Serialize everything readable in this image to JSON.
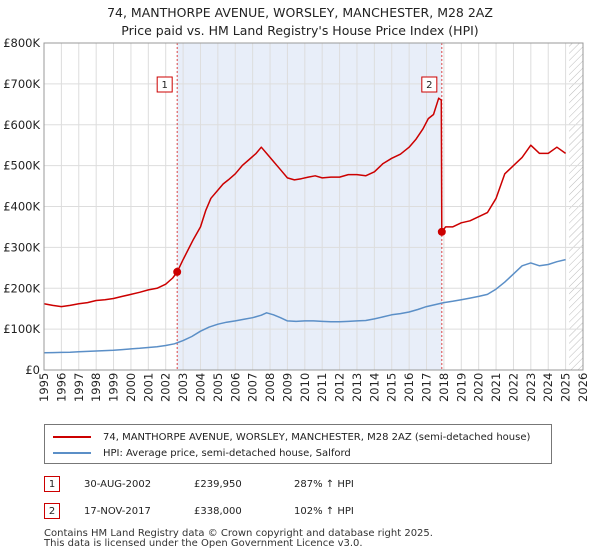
{
  "title": {
    "line1": "74, MANTHORPE AVENUE, WORSLEY, MANCHESTER, M28 2AZ",
    "line2": "Price paid vs. HM Land Registry's House Price Index (HPI)"
  },
  "chart_data": {
    "type": "line",
    "xlim": [
      1995,
      2026
    ],
    "ylim": [
      0,
      800000
    ],
    "yticks": [
      {
        "value": 0,
        "label": "£0"
      },
      {
        "value": 100000,
        "label": "£100K"
      },
      {
        "value": 200000,
        "label": "£200K"
      },
      {
        "value": 300000,
        "label": "£300K"
      },
      {
        "value": 400000,
        "label": "£400K"
      },
      {
        "value": 500000,
        "label": "£500K"
      },
      {
        "value": 600000,
        "label": "£600K"
      },
      {
        "value": 700000,
        "label": "£700K"
      },
      {
        "value": 800000,
        "label": "£800K"
      }
    ],
    "xticks": [
      "1995",
      "1996",
      "1997",
      "1998",
      "1999",
      "2000",
      "2001",
      "2002",
      "2003",
      "2004",
      "2005",
      "2006",
      "2007",
      "2008",
      "2009",
      "2010",
      "2011",
      "2012",
      "2013",
      "2014",
      "2015",
      "2016",
      "2017",
      "2018",
      "2019",
      "2020",
      "2021",
      "2022",
      "2023",
      "2024",
      "2025",
      "2026"
    ],
    "grid": true,
    "shaded_range": [
      2002.66,
      2017.88
    ],
    "forecast_from": 2025.2,
    "series": [
      {
        "name": "74, MANTHORPE AVENUE, WORSLEY, MANCHESTER, M28 2AZ (semi-detached house)",
        "color": "#cc0000",
        "x": [
          1995.0,
          1995.5,
          1996.0,
          1996.5,
          1997.0,
          1997.5,
          1998.0,
          1998.5,
          1999.0,
          1999.5,
          2000.0,
          2000.5,
          2001.0,
          2001.5,
          2002.0,
          2002.4,
          2002.66,
          2003.0,
          2003.3,
          2003.6,
          2004.0,
          2004.3,
          2004.6,
          2005.0,
          2005.3,
          2005.6,
          2006.0,
          2006.4,
          2006.8,
          2007.2,
          2007.5,
          2007.8,
          2008.2,
          2008.6,
          2009.0,
          2009.4,
          2009.8,
          2010.2,
          2010.6,
          2011.0,
          2011.5,
          2012.0,
          2012.5,
          2013.0,
          2013.5,
          2014.0,
          2014.5,
          2015.0,
          2015.5,
          2016.0,
          2016.4,
          2016.8,
          2017.1,
          2017.4,
          2017.7,
          2017.85,
          2017.88,
          2018.1,
          2018.5,
          2019.0,
          2019.5,
          2020.0,
          2020.5,
          2021.0,
          2021.5,
          2022.0,
          2022.5,
          2023.0,
          2023.5,
          2024.0,
          2024.5,
          2025.0
        ],
        "y": [
          162000,
          158000,
          155000,
          158000,
          162000,
          165000,
          170000,
          172000,
          175000,
          180000,
          185000,
          190000,
          196000,
          200000,
          210000,
          225000,
          239950,
          270000,
          295000,
          320000,
          350000,
          390000,
          420000,
          440000,
          455000,
          465000,
          480000,
          500000,
          515000,
          530000,
          545000,
          530000,
          510000,
          490000,
          470000,
          465000,
          468000,
          472000,
          475000,
          470000,
          472000,
          472000,
          478000,
          478000,
          475000,
          485000,
          505000,
          518000,
          528000,
          545000,
          565000,
          590000,
          615000,
          625000,
          665000,
          660000,
          338000,
          350000,
          350000,
          360000,
          365000,
          375000,
          385000,
          420000,
          480000,
          500000,
          520000,
          550000,
          530000,
          530000,
          545000,
          530000
        ]
      },
      {
        "name": "HPI: Average price, semi-detached house, Salford",
        "color": "#5b8fc7",
        "x": [
          1995.0,
          1995.5,
          1996.0,
          1996.5,
          1997.0,
          1997.5,
          1998.0,
          1998.5,
          1999.0,
          1999.5,
          2000.0,
          2000.5,
          2001.0,
          2001.5,
          2002.0,
          2002.5,
          2003.0,
          2003.5,
          2004.0,
          2004.5,
          2005.0,
          2005.5,
          2006.0,
          2006.5,
          2007.0,
          2007.5,
          2007.8,
          2008.2,
          2008.6,
          2009.0,
          2009.5,
          2010.0,
          2010.5,
          2011.0,
          2011.5,
          2012.0,
          2012.5,
          2013.0,
          2013.5,
          2014.0,
          2014.5,
          2015.0,
          2015.5,
          2016.0,
          2016.5,
          2017.0,
          2017.5,
          2018.0,
          2018.5,
          2019.0,
          2019.5,
          2020.0,
          2020.5,
          2021.0,
          2021.5,
          2022.0,
          2022.5,
          2023.0,
          2023.5,
          2024.0,
          2024.5,
          2025.0
        ],
        "y": [
          42000,
          42500,
          43000,
          43500,
          44500,
          45500,
          46500,
          47500,
          48500,
          50000,
          51500,
          53000,
          55000,
          57000,
          60000,
          64000,
          72000,
          82000,
          95000,
          105000,
          112000,
          117000,
          120000,
          124000,
          128000,
          134000,
          140000,
          135000,
          128000,
          120000,
          119000,
          120000,
          120000,
          119000,
          118000,
          118000,
          119000,
          120000,
          121000,
          125000,
          130000,
          135000,
          138000,
          142000,
          148000,
          155000,
          160000,
          165000,
          168000,
          172000,
          176000,
          180000,
          185000,
          198000,
          215000,
          235000,
          255000,
          262000,
          255000,
          258000,
          265000,
          270000
        ]
      }
    ],
    "annotations": [
      {
        "label": "1",
        "x": 2002.66,
        "y": 239950
      },
      {
        "label": "2",
        "x": 2017.88,
        "y": 338000
      }
    ]
  },
  "legend": {
    "property": "74, MANTHORPE AVENUE, WORSLEY, MANCHESTER, M28 2AZ (semi-detached house)",
    "hpi": "HPI: Average price, semi-detached house, Salford"
  },
  "sales": [
    {
      "num": "1",
      "date": "30-AUG-2002",
      "price": "£239,950",
      "hpi": "287% ↑ HPI"
    },
    {
      "num": "2",
      "date": "17-NOV-2017",
      "price": "£338,000",
      "hpi": "102% ↑ HPI"
    }
  ],
  "footer": {
    "line1": "Contains HM Land Registry data © Crown copyright and database right 2025.",
    "line2": "This data is licensed under the Open Government Licence v3.0."
  }
}
